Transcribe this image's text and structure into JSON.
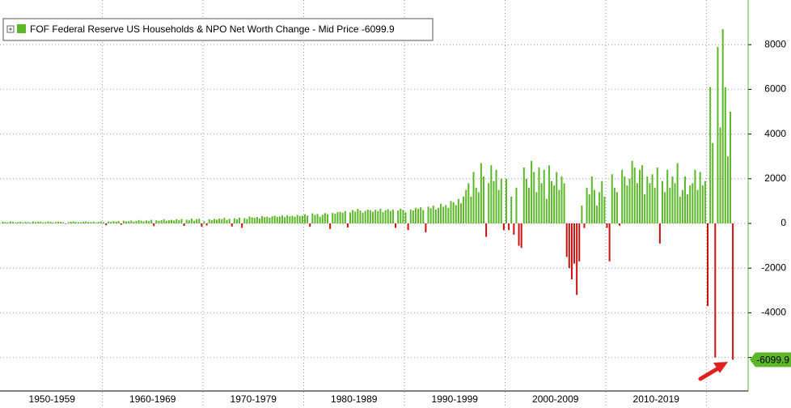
{
  "chart_data": {
    "type": "bar",
    "legend_label": "FOF Federal Reserve US Households & NPO Net Worth Change - Mid Price -6099.9",
    "positive_color": "#5cb82a",
    "negative_color": "#cc1111",
    "ylim": [
      -7500,
      10000
    ],
    "yticks": [
      -6000,
      -4000,
      -2000,
      0,
      2000,
      4000,
      6000,
      8000
    ],
    "grid": true,
    "groups": [
      {
        "label": "1950-1959",
        "values": [
          80,
          60,
          50,
          90,
          70,
          40,
          60,
          80,
          50,
          70,
          60,
          40,
          90,
          60,
          70,
          80,
          50,
          60,
          90,
          70,
          40,
          60,
          80,
          70,
          50,
          -20,
          60,
          80,
          90,
          70,
          60,
          50,
          80,
          90,
          70,
          60,
          80,
          50,
          70,
          90
        ]
      },
      {
        "label": "1960-1969",
        "values": [
          60,
          -80,
          90,
          70,
          100,
          80,
          110,
          -60,
          120,
          90,
          100,
          130,
          80,
          110,
          150,
          120,
          90,
          130,
          100,
          160,
          -120,
          140,
          110,
          150,
          180,
          120,
          140,
          160,
          130,
          190,
          150,
          200,
          -110,
          170,
          140,
          220,
          120,
          190,
          210,
          -150
        ]
      },
      {
        "label": "1970-1979",
        "values": [
          100,
          -90,
          180,
          150,
          200,
          170,
          220,
          190,
          250,
          160,
          210,
          -140,
          230,
          180,
          260,
          -200,
          240,
          200,
          310,
          270,
          250,
          290,
          220,
          330,
          280,
          300,
          260,
          320,
          340,
          290,
          310,
          350,
          280,
          360,
          320,
          340,
          300,
          380,
          330,
          350
        ]
      },
      {
        "label": "1980-1989",
        "values": [
          400,
          350,
          -150,
          450,
          380,
          420,
          300,
          390,
          460,
          410,
          -250,
          470,
          430,
          500,
          520,
          480,
          550,
          -180,
          490,
          600,
          530,
          650,
          580,
          480,
          560,
          620,
          590,
          520,
          610,
          550,
          660,
          500,
          590,
          640,
          560,
          620,
          -200,
          580,
          660,
          600
        ]
      },
      {
        "label": "1990-1999",
        "values": [
          500,
          -300,
          620,
          580,
          700,
          650,
          720,
          600,
          -400,
          750,
          680,
          800,
          620,
          700,
          880,
          750,
          820,
          700,
          1000,
          950,
          820,
          1100,
          900,
          1200,
          1500,
          1800,
          1200,
          2300,
          1600,
          1400,
          2700,
          2100,
          -600,
          1800,
          2600,
          1900,
          2400,
          1500,
          2000,
          -300
        ]
      },
      {
        "label": "2000-2009",
        "values": [
          2000,
          -300,
          1200,
          -500,
          1600,
          -1000,
          -1100,
          2500,
          2000,
          1600,
          2800,
          2300,
          1400,
          2500,
          1800,
          2400,
          1100,
          2600,
          1900,
          1700,
          2300,
          1500,
          2100,
          1800,
          -1500,
          -2000,
          -2500,
          -1800,
          -3200,
          -1700,
          800,
          -200,
          1600,
          1300,
          2100,
          1500,
          800,
          1400,
          1900,
          1200
        ]
      },
      {
        "label": "2010-2019",
        "values": [
          -200,
          -1700,
          2200,
          1600,
          1400,
          -100,
          2400,
          2100,
          1700,
          2000,
          2800,
          2500,
          1800,
          2400,
          2600,
          1300,
          2100,
          1800,
          2200,
          1600,
          2500,
          -900,
          1900,
          1400,
          2400,
          1600,
          2100,
          1800,
          2700,
          1200,
          1500,
          2100,
          1300,
          1700,
          1800,
          2400,
          1500,
          2300,
          1700,
          1900
        ]
      },
      {
        "label": null,
        "values": [
          -3700,
          6100,
          3600,
          -6000,
          7900,
          4300,
          8700,
          6100,
          3000,
          5000,
          -6099.9
        ]
      }
    ]
  }
}
